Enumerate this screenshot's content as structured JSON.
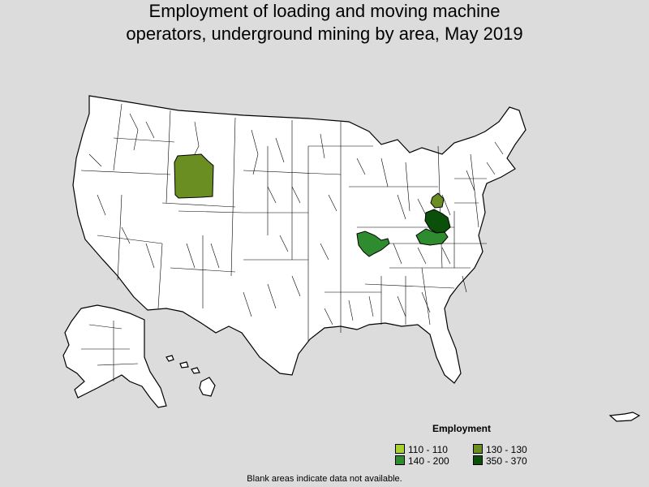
{
  "title": {
    "line1": "Employment of loading and moving machine",
    "line2": "operators, underground mining by area, May 2019"
  },
  "legend": {
    "title": "Employment",
    "items": [
      {
        "label": "110 - 110",
        "color": "#a8d030"
      },
      {
        "label": "130 - 130",
        "color": "#6b8e23"
      },
      {
        "label": "140 - 200",
        "color": "#2e8b2e"
      },
      {
        "label": "350 - 370",
        "color": "#0a4f0a"
      }
    ]
  },
  "note": "Blank areas indicate data not available.",
  "colors": {
    "background": "#dcdcdc",
    "land": "#ffffff",
    "border": "#000000"
  }
}
